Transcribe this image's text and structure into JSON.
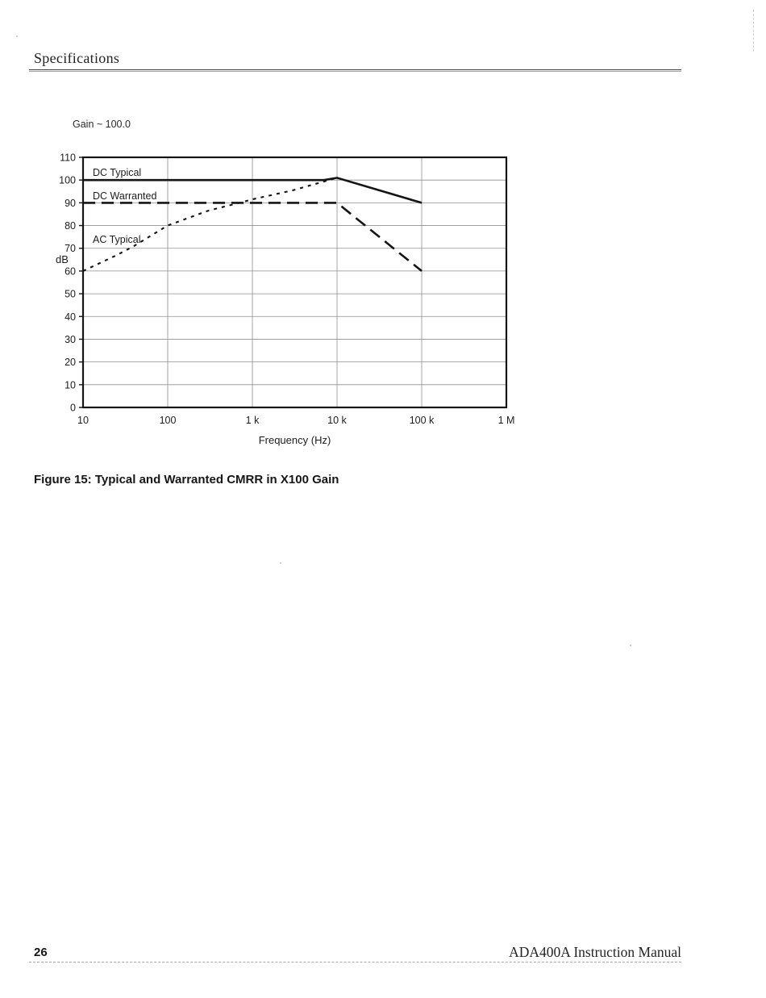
{
  "page": {
    "header": {
      "title": "Specifications"
    },
    "figure_caption": "Figure 15: Typical and Warranted CMRR in X100 Gain",
    "footer": {
      "page_number": "26",
      "manual_title": "ADA400A Instruction Manual"
    }
  },
  "chart_data": {
    "type": "line",
    "title": "Gain ~ 100.0",
    "xlabel": "Frequency (Hz)",
    "ylabel": "dB",
    "x_scale": "log",
    "xlim": [
      10,
      1000000
    ],
    "ylim": [
      0,
      110
    ],
    "x_tick_values": [
      10,
      100,
      1000,
      10000,
      100000,
      1000000
    ],
    "x_tick_labels": [
      "10",
      "100",
      "1 k",
      "10 k",
      "100 k",
      "1 M"
    ],
    "y_tick_values": [
      0,
      10,
      20,
      30,
      40,
      50,
      60,
      70,
      80,
      90,
      100,
      110
    ],
    "grid": true,
    "legend_position": "inline-labels",
    "series": [
      {
        "name": "DC Typical",
        "style": "solid",
        "points": [
          [
            10,
            100
          ],
          [
            7000,
            100
          ],
          [
            10000,
            101
          ],
          [
            100000,
            90
          ]
        ]
      },
      {
        "name": "DC Warranted",
        "style": "long-dash",
        "points": [
          [
            10,
            90
          ],
          [
            10000,
            90
          ],
          [
            100000,
            60
          ]
        ]
      },
      {
        "name": "AC Typical",
        "style": "dotted",
        "points": [
          [
            10,
            60
          ],
          [
            25,
            67
          ],
          [
            40,
            71
          ],
          [
            100,
            80
          ],
          [
            300,
            86.5
          ],
          [
            700,
            90
          ],
          [
            1000,
            91.5
          ],
          [
            3000,
            95.5
          ],
          [
            10000,
            101
          ]
        ]
      }
    ]
  }
}
